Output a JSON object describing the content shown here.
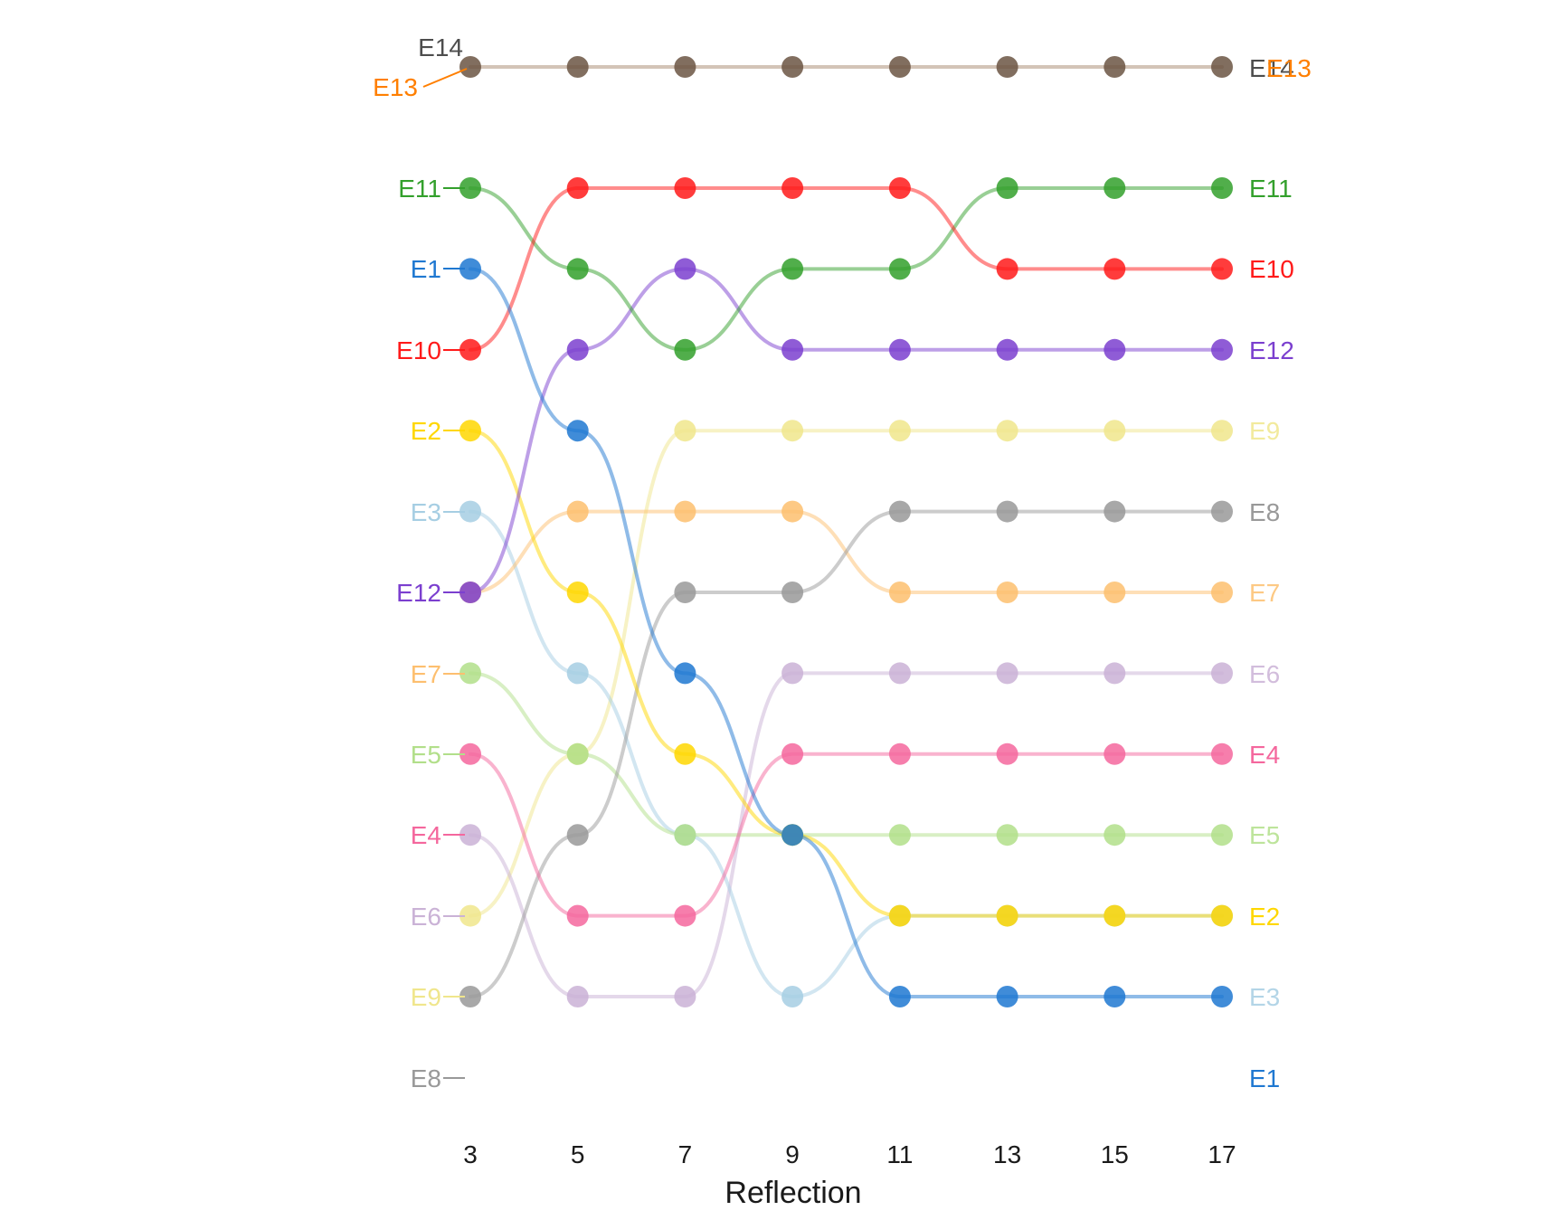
{
  "chart_data": {
    "type": "line",
    "subtype": "bump",
    "title": "",
    "xlabel": "Reflection",
    "ylabel": "",
    "x": [
      3,
      5,
      7,
      9,
      11,
      13,
      15,
      17
    ],
    "x_tick_labels": [
      "3",
      "5",
      "7",
      "9",
      "11",
      "13",
      "15",
      "17"
    ],
    "xlim": [
      3,
      17
    ],
    "y_axis": "rank (1 = top)",
    "ylim": [
      1,
      14
    ],
    "grid": false,
    "legend": "none",
    "series": [
      {
        "name": "E1",
        "color": "#1f78d1",
        "ranks": [
          4,
          6,
          9,
          11,
          13,
          13,
          13,
          13
        ]
      },
      {
        "name": "E2",
        "color": "#ffd700",
        "ranks": [
          6,
          8,
          10,
          11,
          12,
          12,
          12,
          12
        ]
      },
      {
        "name": "E3",
        "color": "#a6cee3",
        "ranks": [
          7,
          9,
          11,
          13,
          12,
          12,
          12,
          12
        ]
      },
      {
        "name": "E4",
        "color": "#f4679d",
        "ranks": [
          10,
          12,
          12,
          10,
          10,
          10,
          10,
          10
        ]
      },
      {
        "name": "E5",
        "color": "#b2df8a",
        "ranks": [
          9,
          10,
          11,
          11,
          11,
          11,
          11,
          11
        ]
      },
      {
        "name": "E6",
        "color": "#cab2d6",
        "ranks": [
          11,
          13,
          13,
          9,
          9,
          9,
          9,
          9
        ]
      },
      {
        "name": "E7",
        "color": "#fdbf6f",
        "ranks": [
          8,
          7,
          7,
          7,
          8,
          8,
          8,
          8
        ]
      },
      {
        "name": "E8",
        "color": "#999999",
        "ranks": [
          13,
          11,
          8,
          8,
          7,
          7,
          7,
          7
        ]
      },
      {
        "name": "E9",
        "color": "#f0e68c",
        "ranks": [
          12,
          10,
          6,
          6,
          6,
          6,
          6,
          6
        ]
      },
      {
        "name": "E10",
        "color": "#ff1a1a",
        "ranks": [
          5,
          3,
          3,
          3,
          3,
          4,
          4,
          4
        ]
      },
      {
        "name": "E11",
        "color": "#33a02c",
        "ranks": [
          3,
          4,
          5,
          4,
          4,
          3,
          3,
          3
        ]
      },
      {
        "name": "E12",
        "color": "#7b3fcf",
        "ranks": [
          8,
          5,
          4,
          5,
          5,
          5,
          5,
          5
        ]
      },
      {
        "name": "E13",
        "color": "#ff7f00",
        "ranks": [
          1,
          1,
          1,
          1,
          1,
          1,
          1,
          1
        ]
      },
      {
        "name": "E14",
        "color": "#6b5543",
        "ranks": [
          1,
          1,
          1,
          1,
          1,
          1,
          1,
          1
        ]
      }
    ],
    "left_labels": [
      {
        "text": "E14",
        "color": "#4d4d4d"
      },
      {
        "text": "E13",
        "color": "#ff7f00"
      },
      {
        "text": "E11",
        "color": "#33a02c"
      },
      {
        "text": "E1",
        "color": "#1f78d1"
      },
      {
        "text": "E10",
        "color": "#ff1a1a"
      },
      {
        "text": "E2",
        "color": "#ffd700"
      },
      {
        "text": "E3",
        "color": "#a6cee3"
      },
      {
        "text": "E12",
        "color": "#7b3fcf"
      },
      {
        "text": "E7",
        "color": "#fdbf6f"
      },
      {
        "text": "E5",
        "color": "#b2df8a"
      },
      {
        "text": "E4",
        "color": "#f4679d"
      },
      {
        "text": "E6",
        "color": "#cab2d6"
      },
      {
        "text": "E9",
        "color": "#f0e68c"
      },
      {
        "text": "E8",
        "color": "#999999"
      }
    ],
    "right_labels": [
      {
        "text": "E14",
        "color": "#4d4d4d"
      },
      {
        "text": "E13",
        "color": "#ff7f00"
      },
      {
        "text": "E11",
        "color": "#33a02c"
      },
      {
        "text": "E10",
        "color": "#ff1a1a"
      },
      {
        "text": "E12",
        "color": "#7b3fcf"
      },
      {
        "text": "E9",
        "color": "#f0e68c"
      },
      {
        "text": "E8",
        "color": "#999999"
      },
      {
        "text": "E7",
        "color": "#fdbf6f"
      },
      {
        "text": "E6",
        "color": "#cab2d6"
      },
      {
        "text": "E4",
        "color": "#f4679d"
      },
      {
        "text": "E5",
        "color": "#b2df8a"
      },
      {
        "text": "E2",
        "color": "#ffd700"
      },
      {
        "text": "E3",
        "color": "#a6cee3"
      },
      {
        "text": "E1",
        "color": "#1f78d1"
      }
    ]
  }
}
